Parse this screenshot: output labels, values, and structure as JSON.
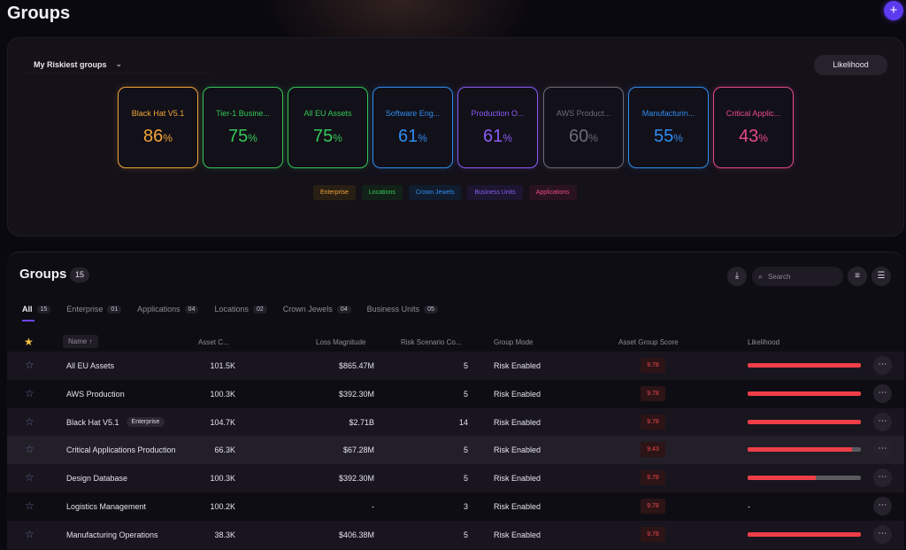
{
  "header": {
    "title": "Groups",
    "add_icon": "+"
  },
  "risk_panel": {
    "dropdown_label": "My Riskiest groups",
    "likelihood_button": "Likelihood",
    "cards": [
      {
        "name": "Black Hat V5.1",
        "value": "86",
        "unit": "%",
        "color": "#f0a53a"
      },
      {
        "name": "Tier-1 Busine...",
        "value": "75",
        "unit": "%",
        "color": "#34c759"
      },
      {
        "name": "All EU Assets",
        "value": "75",
        "unit": "%",
        "color": "#34c759"
      },
      {
        "name": "Software Eng...",
        "value": "61",
        "unit": "%",
        "color": "#2f8cf0"
      },
      {
        "name": "Production O...",
        "value": "61",
        "unit": "%",
        "color": "#8a5cf5"
      },
      {
        "name": "AWS Product...",
        "value": "60",
        "unit": "%",
        "color": "#6e6b78"
      },
      {
        "name": "Manufacturin...",
        "value": "55",
        "unit": "%",
        "color": "#2f8cf0"
      },
      {
        "name": "Critical Applic...",
        "value": "43",
        "unit": "%",
        "color": "#e84a8f"
      }
    ],
    "legend": [
      {
        "label": "Enterprise",
        "color": "#f0a53a",
        "bg": "#2a1f14"
      },
      {
        "label": "Locations",
        "color": "#34c759",
        "bg": "#132218"
      },
      {
        "label": "Crown Jewels",
        "color": "#2f8cf0",
        "bg": "#111d2e"
      },
      {
        "label": "Business Units",
        "color": "#8a5cf5",
        "bg": "#1c1630"
      },
      {
        "label": "Applications",
        "color": "#e84a8f",
        "bg": "#2a1320"
      }
    ]
  },
  "groups": {
    "title": "Groups",
    "count": "15",
    "search_placeholder": "Search",
    "tabs": [
      {
        "label": "All",
        "count": "15"
      },
      {
        "label": "Enterprise",
        "count": "01"
      },
      {
        "label": "Applications",
        "count": "04"
      },
      {
        "label": "Locations",
        "count": "02"
      },
      {
        "label": "Crown Jewels",
        "count": "04"
      },
      {
        "label": "Business Units",
        "count": "05"
      }
    ],
    "columns": {
      "name": "Name ↑",
      "asset_count": "Asset C...",
      "loss": "Loss Magnitude",
      "scenario": "Risk Scenario Co...",
      "mode": "Group Mode",
      "score": "Asset Group Score",
      "likelihood": "Likelihood"
    },
    "rows": [
      {
        "name": "All EU Assets",
        "badge": "",
        "assets": "101.5K",
        "loss": "$865.47M",
        "scenarios": "5",
        "mode": "Risk Enabled",
        "score": "9.78",
        "likelihood": 1.0
      },
      {
        "name": "AWS Production",
        "badge": "",
        "assets": "100.3K",
        "loss": "$392.30M",
        "scenarios": "5",
        "mode": "Risk Enabled",
        "score": "9.78",
        "likelihood": 1.0
      },
      {
        "name": "Black Hat V5.1",
        "badge": "Enterprise",
        "assets": "104.7K",
        "loss": "$2.71B",
        "scenarios": "14",
        "mode": "Risk Enabled",
        "score": "9.78",
        "likelihood": 1.0
      },
      {
        "name": "Critical Applications Production",
        "badge": "",
        "assets": "66.3K",
        "loss": "$67.28M",
        "scenarios": "5",
        "mode": "Risk Enabled",
        "score": "9.43",
        "likelihood": 0.92
      },
      {
        "name": "Design Database",
        "badge": "",
        "assets": "100.3K",
        "loss": "$392.30M",
        "scenarios": "5",
        "mode": "Risk Enabled",
        "score": "9.78",
        "likelihood": 0.6
      },
      {
        "name": "Logistics Management",
        "badge": "",
        "assets": "100.2K",
        "loss": "-",
        "scenarios": "3",
        "mode": "Risk Enabled",
        "score": "9.78",
        "likelihood": null,
        "likelihood_text": "-"
      },
      {
        "name": "Manufacturing Operations",
        "badge": "",
        "assets": "38.3K",
        "loss": "$406.38M",
        "scenarios": "5",
        "mode": "Risk Enabled",
        "score": "9.78",
        "likelihood": 1.0
      }
    ]
  }
}
